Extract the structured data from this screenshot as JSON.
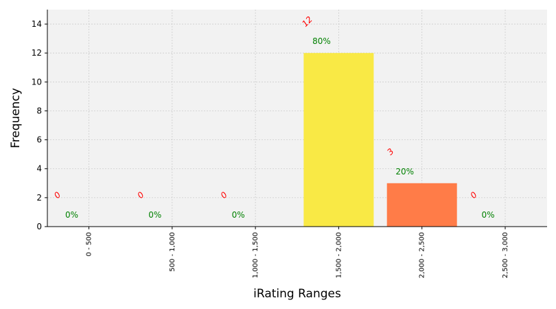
{
  "chart_data": {
    "type": "bar",
    "xlabel": "iRating Ranges",
    "ylabel": "Frequency",
    "categories": [
      "0 - 500",
      "500 - 1,000",
      "1,000 - 1,500",
      "1,500 - 2,000",
      "2,000 - 2,500",
      "2,500 - 3,000"
    ],
    "values": [
      0,
      0,
      0,
      12,
      3,
      0
    ],
    "count_labels": [
      "0",
      "0",
      "0",
      "12",
      "3",
      "0"
    ],
    "percent_labels": [
      "0%",
      "0%",
      "0%",
      "80%",
      "20%",
      "0%"
    ],
    "bar_colors": [
      "#f9e945",
      "#f9e945",
      "#f9e945",
      "#f9e945",
      "#ff7c48",
      "#f9e945"
    ],
    "yticks": [
      0,
      2,
      4,
      6,
      8,
      10,
      12,
      14
    ],
    "ylim": [
      0,
      15
    ],
    "grid": true,
    "colors": {
      "plot_background": "#f2f2f2",
      "count_label": "#ff0000",
      "percent_label": "#008000",
      "grid": "#cccccc"
    }
  }
}
